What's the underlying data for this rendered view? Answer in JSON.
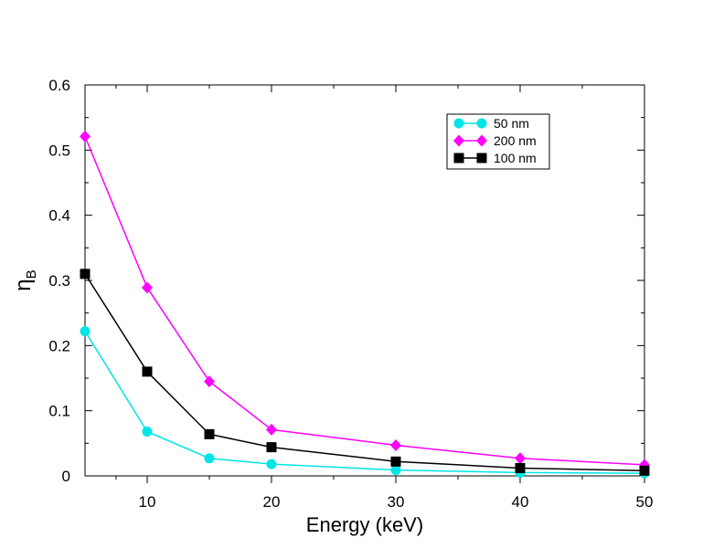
{
  "chart_data": {
    "type": "line",
    "xlabel": "Energy (keV)",
    "ylabel": {
      "main": "η",
      "sub": "B"
    },
    "xlim": [
      5,
      50
    ],
    "ylim": [
      0,
      0.6
    ],
    "xticks": [
      10,
      20,
      30,
      40,
      50
    ],
    "yticks": [
      0,
      0.1,
      0.2,
      0.3,
      0.4,
      0.5,
      0.6
    ],
    "ytick_labels": [
      "0",
      "0.1",
      "0.2",
      "0.3",
      "0.4",
      "0.5",
      "0.6"
    ],
    "grid": false,
    "legend_position": "top-right",
    "series": [
      {
        "name": "50 nm",
        "color": "#00e5e5",
        "marker": "circle",
        "x": [
          5,
          10,
          15,
          20,
          30,
          40,
          50
        ],
        "y": [
          0.222,
          0.068,
          0.027,
          0.018,
          0.009,
          0.005,
          0.004
        ]
      },
      {
        "name": "200 nm",
        "color": "#ff00ff",
        "marker": "diamond",
        "x": [
          5,
          10,
          15,
          20,
          30,
          40,
          50
        ],
        "y": [
          0.521,
          0.289,
          0.145,
          0.071,
          0.047,
          0.027,
          0.017
        ]
      },
      {
        "name": "100 nm",
        "color": "#000000",
        "marker": "square",
        "x": [
          5,
          10,
          15,
          20,
          30,
          40,
          50
        ],
        "y": [
          0.31,
          0.16,
          0.064,
          0.044,
          0.022,
          0.012,
          0.008
        ]
      }
    ]
  }
}
